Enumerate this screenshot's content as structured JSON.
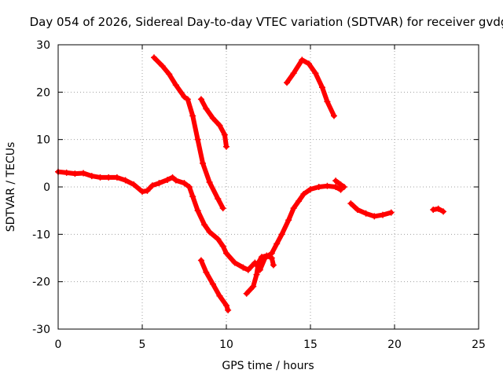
{
  "chart_data": {
    "type": "scatter",
    "title": "Day 054 of 2026, Sidereal Day-to-day VTEC variation (SDTVAR) for receiver gvdg",
    "xlabel": "GPS time / hours",
    "ylabel": "SDTVAR / TECUs",
    "xlim": [
      0,
      25
    ],
    "ylim": [
      -30,
      30
    ],
    "xticks": [
      0,
      5,
      10,
      15,
      20,
      25
    ],
    "yticks": [
      -30,
      -20,
      -10,
      0,
      10,
      20,
      30
    ],
    "xtick_labels": [
      "0",
      "5",
      "10",
      "15",
      "20",
      "25"
    ],
    "ytick_labels": [
      "-30",
      "-20",
      "-10",
      "0",
      "10",
      "20",
      "30"
    ],
    "grid": true,
    "marker_color": "#ff0000",
    "series": [
      {
        "name": "main-track",
        "points": [
          [
            0.0,
            3.2
          ],
          [
            0.5,
            3.0
          ],
          [
            1.0,
            2.8
          ],
          [
            1.5,
            2.9
          ],
          [
            2.0,
            2.3
          ],
          [
            2.5,
            2.0
          ],
          [
            3.0,
            2.0
          ],
          [
            3.5,
            2.0
          ],
          [
            4.0,
            1.4
          ],
          [
            4.5,
            0.5
          ],
          [
            5.0,
            -1.0
          ],
          [
            5.3,
            -0.8
          ],
          [
            5.6,
            0.3
          ],
          [
            6.0,
            0.8
          ],
          [
            6.5,
            1.5
          ],
          [
            6.8,
            2.0
          ],
          [
            7.0,
            1.4
          ],
          [
            7.5,
            0.8
          ],
          [
            7.8,
            0.0
          ],
          [
            8.0,
            -2.0
          ],
          [
            8.3,
            -5.0
          ],
          [
            8.7,
            -8.0
          ],
          [
            9.0,
            -9.5
          ],
          [
            9.5,
            -11.0
          ],
          [
            9.8,
            -12.5
          ],
          [
            10.0,
            -14.0
          ],
          [
            10.5,
            -16.0
          ],
          [
            11.0,
            -17.0
          ],
          [
            11.3,
            -17.5
          ],
          [
            11.7,
            -16.0
          ],
          [
            12.0,
            -17.5
          ],
          [
            12.3,
            -15.0
          ],
          [
            12.7,
            -14.0
          ],
          [
            13.0,
            -12.0
          ],
          [
            13.3,
            -10.0
          ],
          [
            13.7,
            -7.0
          ],
          [
            14.0,
            -4.5
          ],
          [
            14.3,
            -3.0
          ],
          [
            14.6,
            -1.5
          ],
          [
            15.0,
            -0.5
          ],
          [
            15.5,
            0.0
          ],
          [
            16.0,
            0.2
          ],
          [
            16.5,
            0.0
          ],
          [
            16.8,
            -0.6
          ]
        ]
      },
      {
        "name": "steep-descending-track",
        "points": [
          [
            5.7,
            27.3
          ],
          [
            6.2,
            25.5
          ],
          [
            6.6,
            23.8
          ],
          [
            7.0,
            21.5
          ],
          [
            7.5,
            19.0
          ],
          [
            7.7,
            18.5
          ],
          [
            8.0,
            15.0
          ],
          [
            8.3,
            10.0
          ],
          [
            8.6,
            5.0
          ],
          [
            9.0,
            1.0
          ],
          [
            9.5,
            -2.5
          ],
          [
            9.8,
            -4.5
          ]
        ]
      },
      {
        "name": "short-descending-track",
        "points": [
          [
            8.5,
            18.5
          ],
          [
            8.8,
            16.5
          ],
          [
            9.2,
            14.5
          ],
          [
            9.6,
            13.0
          ],
          [
            9.9,
            11.0
          ],
          [
            10.0,
            8.5
          ]
        ]
      },
      {
        "name": "lower-descending-track",
        "points": [
          [
            8.5,
            -15.5
          ],
          [
            8.8,
            -18.0
          ],
          [
            9.2,
            -20.5
          ],
          [
            9.6,
            -23.0
          ],
          [
            10.0,
            -25.0
          ],
          [
            10.1,
            -26.0
          ]
        ]
      },
      {
        "name": "loop-track",
        "points": [
          [
            11.2,
            -22.5
          ],
          [
            11.6,
            -21.0
          ],
          [
            11.8,
            -18.5
          ],
          [
            11.9,
            -16.0
          ],
          [
            12.1,
            -14.8
          ],
          [
            12.4,
            -14.5
          ],
          [
            12.7,
            -15.0
          ],
          [
            12.8,
            -16.5
          ]
        ]
      },
      {
        "name": "peak-track",
        "points": [
          [
            13.6,
            22.0
          ],
          [
            14.0,
            24.0
          ],
          [
            14.5,
            26.8
          ],
          [
            14.9,
            26.0
          ],
          [
            15.3,
            24.0
          ],
          [
            15.7,
            21.0
          ],
          [
            16.0,
            18.0
          ],
          [
            16.4,
            15.0
          ]
        ]
      },
      {
        "name": "tail-track",
        "points": [
          [
            17.4,
            -3.5
          ],
          [
            17.8,
            -4.8
          ],
          [
            18.3,
            -5.6
          ],
          [
            18.8,
            -6.2
          ],
          [
            19.3,
            -5.9
          ],
          [
            19.8,
            -5.4
          ]
        ]
      },
      {
        "name": "tail-fragment",
        "points": [
          [
            16.5,
            1.3
          ],
          [
            16.8,
            0.5
          ],
          [
            17.0,
            0.0
          ]
        ]
      },
      {
        "name": "late-cluster",
        "points": [
          [
            22.3,
            -4.8
          ],
          [
            22.6,
            -4.6
          ],
          [
            22.9,
            -5.2
          ]
        ]
      }
    ]
  }
}
